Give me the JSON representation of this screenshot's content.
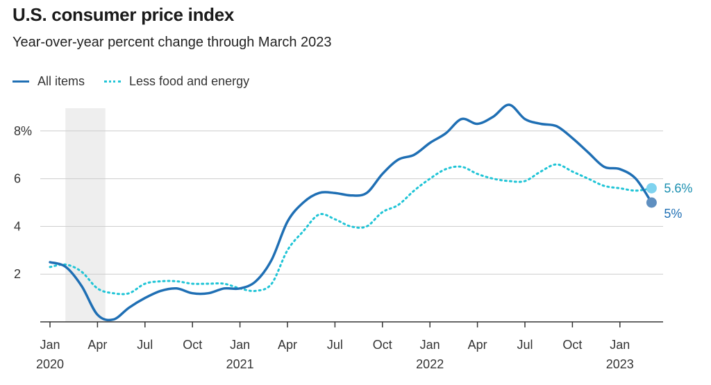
{
  "title": "U.S. consumer price index",
  "subtitle": "Year-over-year percent change through March 2023",
  "colors": {
    "all_items": "#1f6fb4",
    "core": "#1fc4d6",
    "grid": "#cccccc",
    "shade": "#eeeeee",
    "axis": "#333333"
  },
  "chart_data": {
    "type": "line",
    "x": [
      "2020-01",
      "2020-02",
      "2020-03",
      "2020-04",
      "2020-05",
      "2020-06",
      "2020-07",
      "2020-08",
      "2020-09",
      "2020-10",
      "2020-11",
      "2020-12",
      "2021-01",
      "2021-02",
      "2021-03",
      "2021-04",
      "2021-05",
      "2021-06",
      "2021-07",
      "2021-08",
      "2021-09",
      "2021-10",
      "2021-11",
      "2021-12",
      "2022-01",
      "2022-02",
      "2022-03",
      "2022-04",
      "2022-05",
      "2022-06",
      "2022-07",
      "2022-08",
      "2022-09",
      "2022-10",
      "2022-11",
      "2022-12",
      "2023-01",
      "2023-02",
      "2023-03"
    ],
    "series": [
      {
        "name": "All items",
        "style": "solid",
        "color": "#1f6fb4",
        "values": [
          2.5,
          2.3,
          1.5,
          0.3,
          0.1,
          0.6,
          1.0,
          1.3,
          1.4,
          1.2,
          1.2,
          1.4,
          1.4,
          1.7,
          2.6,
          4.2,
          5.0,
          5.4,
          5.4,
          5.3,
          5.4,
          6.2,
          6.8,
          7.0,
          7.5,
          7.9,
          8.5,
          8.3,
          8.6,
          9.1,
          8.5,
          8.3,
          8.2,
          7.7,
          7.1,
          6.5,
          6.4,
          6.0,
          5.0
        ]
      },
      {
        "name": "Less food and energy",
        "style": "dotted",
        "color": "#1fc4d6",
        "values": [
          2.3,
          2.4,
          2.1,
          1.4,
          1.2,
          1.2,
          1.6,
          1.7,
          1.7,
          1.6,
          1.6,
          1.6,
          1.4,
          1.3,
          1.6,
          3.0,
          3.8,
          4.5,
          4.3,
          4.0,
          4.0,
          4.6,
          4.9,
          5.5,
          6.0,
          6.4,
          6.5,
          6.2,
          6.0,
          5.9,
          5.9,
          6.3,
          6.6,
          6.3,
          6.0,
          5.7,
          5.6,
          5.5,
          5.6
        ]
      }
    ],
    "end_labels": [
      "5%",
      "5.6%"
    ],
    "ylim": [
      0,
      9
    ],
    "y_ticks": [
      2,
      4,
      6,
      8
    ],
    "y_tick_labels": [
      "2",
      "4",
      "6",
      "8%"
    ],
    "x_tick_labels": [
      {
        "date": "2020-01",
        "month": "Jan",
        "year": "2020"
      },
      {
        "date": "2020-04",
        "month": "Apr",
        "year": ""
      },
      {
        "date": "2020-07",
        "month": "Jul",
        "year": ""
      },
      {
        "date": "2020-10",
        "month": "Oct",
        "year": ""
      },
      {
        "date": "2021-01",
        "month": "Jan",
        "year": "2021"
      },
      {
        "date": "2021-04",
        "month": "Apr",
        "year": ""
      },
      {
        "date": "2021-07",
        "month": "Jul",
        "year": ""
      },
      {
        "date": "2021-10",
        "month": "Oct",
        "year": ""
      },
      {
        "date": "2022-01",
        "month": "Jan",
        "year": "2022"
      },
      {
        "date": "2022-04",
        "month": "Apr",
        "year": ""
      },
      {
        "date": "2022-07",
        "month": "Jul",
        "year": ""
      },
      {
        "date": "2022-10",
        "month": "Oct",
        "year": ""
      },
      {
        "date": "2023-01",
        "month": "Jan",
        "year": "2023"
      }
    ],
    "shaded_period": {
      "start": "2020-02",
      "end": "2020-04"
    },
    "grid": true,
    "legend_position": "top-left"
  }
}
